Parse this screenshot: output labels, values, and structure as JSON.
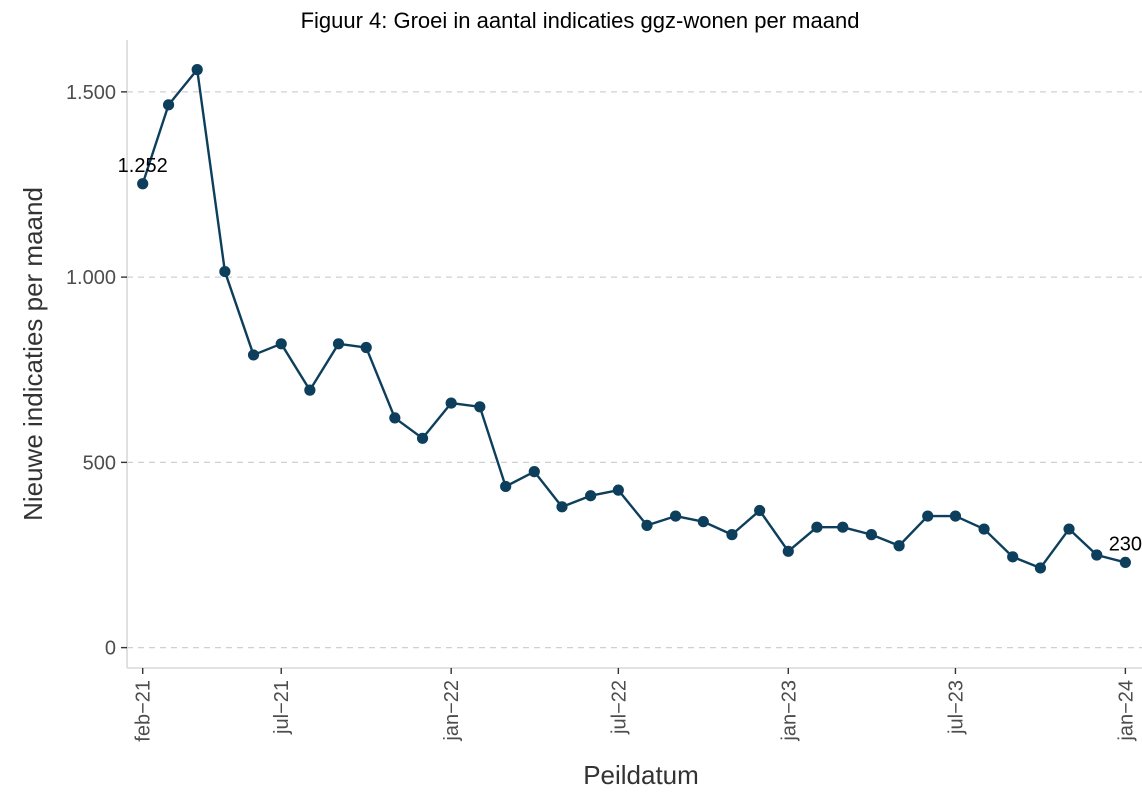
{
  "chart_data": {
    "type": "line",
    "title": "Figuur 4: Groei in aantal indicaties ggz-wonen per maand",
    "xlabel": "Peildatum",
    "ylabel": "Nieuwe indicaties per maand",
    "ylim": [
      -55,
      1640
    ],
    "xlim": [
      "2021-01-15",
      "2024-01-19"
    ],
    "y_ticks": [
      {
        "value": 0,
        "label": "0"
      },
      {
        "value": 500,
        "label": "500"
      },
      {
        "value": 1000,
        "label": "1.000"
      },
      {
        "value": 1500,
        "label": "1.500"
      }
    ],
    "x_ticks": [
      {
        "date": "2021-02-01",
        "label": "feb−21"
      },
      {
        "date": "2021-07-01",
        "label": "jul−21"
      },
      {
        "date": "2022-01-01",
        "label": "jan−22"
      },
      {
        "date": "2022-07-01",
        "label": "jul−22"
      },
      {
        "date": "2023-01-01",
        "label": "jan−23"
      },
      {
        "date": "2023-07-01",
        "label": "jul−23"
      },
      {
        "date": "2024-01-01",
        "label": "jan−24"
      }
    ],
    "grid": "horizontal dashed",
    "series": [
      {
        "color": "#0d3f5c",
        "x": [
          "2021-02-01",
          "2021-03-01",
          "2021-04-01",
          "2021-05-01",
          "2021-06-01",
          "2021-07-01",
          "2021-08-01",
          "2021-09-01",
          "2021-10-01",
          "2021-11-01",
          "2021-12-01",
          "2022-01-01",
          "2022-02-01",
          "2022-03-01",
          "2022-04-01",
          "2022-05-01",
          "2022-06-01",
          "2022-07-01",
          "2022-08-01",
          "2022-09-01",
          "2022-10-01",
          "2022-11-01",
          "2022-12-01",
          "2023-01-01",
          "2023-02-01",
          "2023-03-01",
          "2023-04-01",
          "2023-05-01",
          "2023-06-01",
          "2023-07-01",
          "2023-08-01",
          "2023-09-01",
          "2023-10-01",
          "2023-11-01",
          "2023-12-01",
          "2024-01-01"
        ],
        "values": [
          1252,
          1465,
          1560,
          1015,
          790,
          820,
          695,
          820,
          810,
          620,
          565,
          660,
          650,
          435,
          475,
          380,
          410,
          425,
          330,
          355,
          340,
          305,
          370,
          260,
          325,
          325,
          305,
          275,
          355,
          355,
          320,
          245,
          215,
          320,
          250,
          230
        ]
      }
    ],
    "annotations": [
      {
        "date": "2021-02-01",
        "value": 1252,
        "label": "1.252"
      },
      {
        "date": "2024-01-01",
        "value": 230,
        "label": "230"
      }
    ]
  }
}
